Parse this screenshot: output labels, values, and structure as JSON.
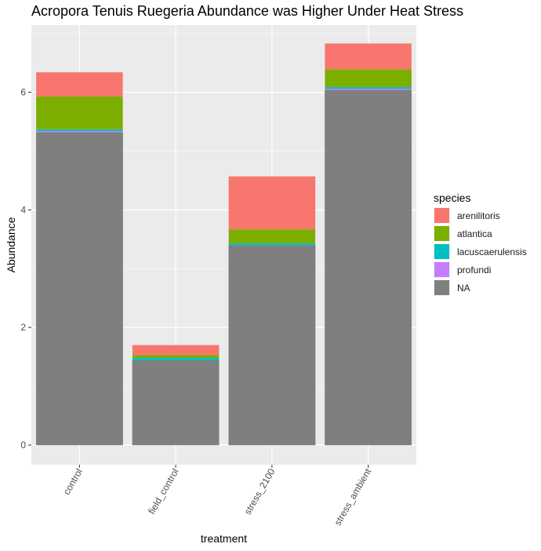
{
  "chart_data": {
    "type": "bar",
    "stacked": true,
    "title": "Acropora Tenuis Ruegeria Abundance was Higher Under Heat Stress",
    "xlabel": "treatment",
    "ylabel": "Abundance",
    "categories": [
      "control",
      "field_control",
      "stress_2100",
      "stress_ambient"
    ],
    "yticks": [
      0,
      2,
      4,
      6
    ],
    "ylim": [
      -0.35,
      7.1
    ],
    "grid": true,
    "legend": {
      "title": "species",
      "placement": "right"
    },
    "series": [
      {
        "name": "NA",
        "color": "#7f7f7f",
        "values": [
          5.32,
          1.44,
          3.4,
          6.04
        ]
      },
      {
        "name": "profundi",
        "color": "#c77cff",
        "values": [
          0.02,
          0.0,
          0.0,
          0.02
        ]
      },
      {
        "name": "lacuscaerulensis",
        "color": "#00bfc4",
        "values": [
          0.03,
          0.04,
          0.03,
          0.03
        ]
      },
      {
        "name": "atlantica",
        "color": "#7cae00",
        "values": [
          0.56,
          0.05,
          0.24,
          0.3
        ]
      },
      {
        "name": "arenilitoris",
        "color": "#f8766d",
        "values": [
          0.41,
          0.17,
          0.9,
          0.44
        ]
      }
    ],
    "legend_order": [
      "arenilitoris",
      "atlantica",
      "lacuscaerulensis",
      "profundi",
      "NA"
    ]
  }
}
